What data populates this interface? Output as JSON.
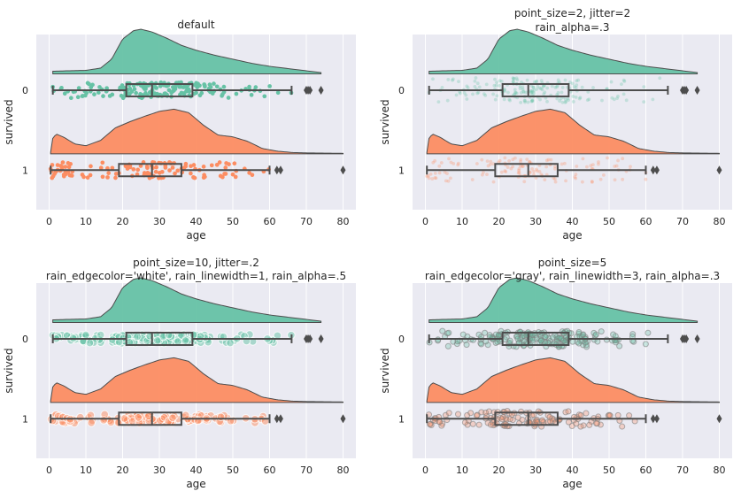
{
  "chart_data": [
    {
      "type": "raincloud",
      "title": [
        "default"
      ],
      "xlabel": "age",
      "ylabel": "survived",
      "xlim": [
        -3.5,
        83.5
      ],
      "xticks": [
        0,
        10,
        20,
        30,
        40,
        50,
        60,
        70,
        80
      ],
      "categories": [
        "0",
        "1"
      ],
      "grid": true,
      "point_size": 3,
      "jitter": 1,
      "rain_alpha": 1,
      "rain_edgecolor": "none",
      "rain_linewidth": 0,
      "series": [
        {
          "name": "0",
          "color": "#66c2a5",
          "boxplot": {
            "q1": 21,
            "median": 28,
            "q3": 39,
            "whisker_low": 1,
            "whisker_high": 66,
            "outliers": [
              70,
              70.5,
              71,
              74
            ]
          },
          "age_range": [
            1,
            74
          ]
        },
        {
          "name": "1",
          "color": "#fc8d62",
          "boxplot": {
            "q1": 19,
            "median": 28,
            "q3": 36,
            "whisker_low": 0.4,
            "whisker_high": 60,
            "outliers": [
              62,
              63,
              80
            ]
          },
          "age_range": [
            0.4,
            80
          ]
        }
      ]
    },
    {
      "type": "raincloud",
      "title": [
        "point_size=2, jitter=2",
        "rain_alpha=.3"
      ],
      "xlabel": "age",
      "ylabel": "survived",
      "xlim": [
        -3.5,
        83.5
      ],
      "xticks": [
        0,
        10,
        20,
        30,
        40,
        50,
        60,
        70,
        80
      ],
      "categories": [
        "0",
        "1"
      ],
      "grid": true,
      "point_size": 2,
      "jitter": 2,
      "rain_alpha": 0.3,
      "rain_edgecolor": "none",
      "rain_linewidth": 0,
      "series": [
        {
          "name": "0",
          "color": "#66c2a5",
          "boxplot": {
            "q1": 21,
            "median": 28,
            "q3": 39,
            "whisker_low": 1,
            "whisker_high": 66,
            "outliers": [
              70,
              70.5,
              71,
              74
            ]
          },
          "age_range": [
            1,
            74
          ]
        },
        {
          "name": "1",
          "color": "#fc8d62",
          "boxplot": {
            "q1": 19,
            "median": 28,
            "q3": 36,
            "whisker_low": 0.4,
            "whisker_high": 60,
            "outliers": [
              62,
              63,
              80
            ]
          },
          "age_range": [
            0.4,
            80
          ]
        }
      ]
    },
    {
      "type": "raincloud",
      "title": [
        "point_size=10, jitter=.2",
        "rain_edgecolor='white', rain_linewidth=1, rain_alpha=.5"
      ],
      "xlabel": "age",
      "ylabel": "survived",
      "xlim": [
        -3.5,
        83.5
      ],
      "xticks": [
        0,
        10,
        20,
        30,
        40,
        50,
        60,
        70,
        80
      ],
      "categories": [
        "0",
        "1"
      ],
      "grid": true,
      "point_size": 10,
      "jitter": 0.2,
      "rain_alpha": 0.5,
      "rain_edgecolor": "white",
      "rain_linewidth": 1,
      "series": [
        {
          "name": "0",
          "color": "#66c2a5",
          "boxplot": {
            "q1": 21,
            "median": 28,
            "q3": 39,
            "whisker_low": 1,
            "whisker_high": 66,
            "outliers": [
              70,
              70.5,
              71,
              74
            ]
          },
          "age_range": [
            1,
            74
          ]
        },
        {
          "name": "1",
          "color": "#fc8d62",
          "boxplot": {
            "q1": 19,
            "median": 28,
            "q3": 36,
            "whisker_low": 0.4,
            "whisker_high": 60,
            "outliers": [
              62,
              63,
              80
            ]
          },
          "age_range": [
            0.4,
            80
          ]
        }
      ]
    },
    {
      "type": "raincloud",
      "title": [
        "point_size=5",
        "rain_edgecolor='gray', rain_linewidth=3, rain_alpha=.3"
      ],
      "xlabel": "age",
      "ylabel": "survived",
      "xlim": [
        -3.5,
        83.5
      ],
      "xticks": [
        0,
        10,
        20,
        30,
        40,
        50,
        60,
        70,
        80
      ],
      "categories": [
        "0",
        "1"
      ],
      "grid": true,
      "point_size": 5,
      "jitter": 1,
      "rain_alpha": 0.3,
      "rain_edgecolor": "gray",
      "rain_linewidth": 3,
      "series": [
        {
          "name": "0",
          "color": "#66c2a5",
          "boxplot": {
            "q1": 21,
            "median": 28,
            "q3": 39,
            "whisker_low": 1,
            "whisker_high": 66,
            "outliers": [
              70,
              70.5,
              71,
              74
            ]
          },
          "age_range": [
            1,
            74
          ]
        },
        {
          "name": "1",
          "color": "#fc8d62",
          "boxplot": {
            "q1": 19,
            "median": 28,
            "q3": 36,
            "whisker_low": 0.4,
            "whisker_high": 60,
            "outliers": [
              62,
              63,
              80
            ]
          },
          "age_range": [
            0.4,
            80
          ]
        }
      ]
    }
  ]
}
